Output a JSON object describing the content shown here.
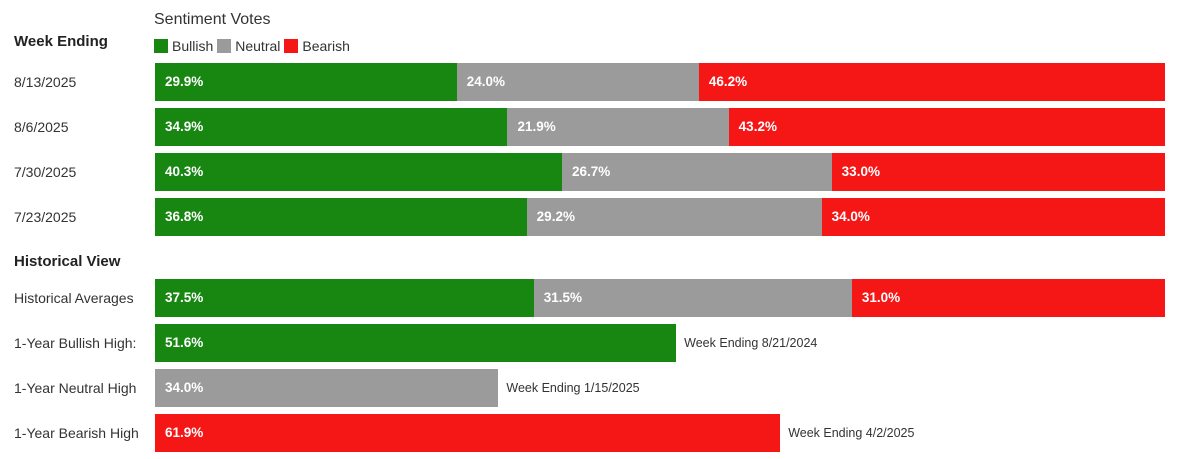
{
  "chart_data": {
    "type": "bar",
    "orientation": "horizontal",
    "stacked": true,
    "title": "Sentiment Votes",
    "legend": [
      {
        "name": "Bullish",
        "color": "#178712"
      },
      {
        "name": "Neutral",
        "color": "#9b9b9b"
      },
      {
        "name": "Bearish",
        "color": "#f51616"
      }
    ],
    "xlim": [
      0,
      100
    ],
    "sections": {
      "week": {
        "title": "Week Ending",
        "rows": [
          {
            "label": "8/13/2025",
            "values": [
              29.9,
              24.0,
              46.2
            ],
            "labels": [
              "29.9%",
              "24.0%",
              "46.2%"
            ]
          },
          {
            "label": "8/6/2025",
            "values": [
              34.9,
              21.9,
              43.2
            ],
            "labels": [
              "34.9%",
              "21.9%",
              "43.2%"
            ]
          },
          {
            "label": "7/30/2025",
            "values": [
              40.3,
              26.7,
              33.0
            ],
            "labels": [
              "40.3%",
              "26.7%",
              "33.0%"
            ]
          },
          {
            "label": "7/23/2025",
            "values": [
              36.8,
              29.2,
              34.0
            ],
            "labels": [
              "36.8%",
              "29.2%",
              "34.0%"
            ]
          }
        ]
      },
      "historical": {
        "title": "Historical View",
        "rows": [
          {
            "label": "Historical Averages",
            "values": [
              37.5,
              31.5,
              31.0
            ],
            "labels": [
              "37.5%",
              "31.5%",
              "31.0%"
            ],
            "annotation": ""
          },
          {
            "label": "1-Year Bullish High:",
            "values": [
              51.6,
              0,
              0
            ],
            "labels": [
              "51.6%",
              "",
              ""
            ],
            "annotation": "Week Ending 8/21/2024"
          },
          {
            "label": "1-Year Neutral High",
            "values": [
              0,
              34.0,
              0
            ],
            "labels": [
              "",
              "34.0%",
              ""
            ],
            "annotation": "Week Ending 1/15/2025"
          },
          {
            "label": "1-Year Bearish High",
            "values": [
              0,
              0,
              61.9
            ],
            "labels": [
              "",
              "",
              "61.9%"
            ],
            "annotation": "Week Ending 4/2/2025"
          }
        ]
      }
    }
  }
}
